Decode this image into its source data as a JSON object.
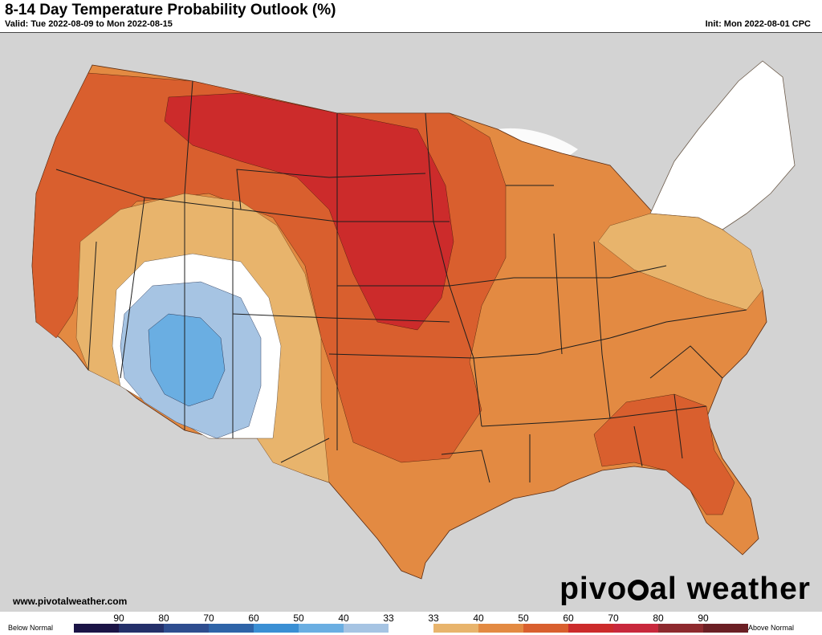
{
  "header": {
    "title": "8-14 Day Temperature Probability Outlook (%)",
    "valid": "Valid: Tue 2022-08-09 to Mon 2022-08-15",
    "init": "Init: Mon 2022-08-01 CPC"
  },
  "footer": {
    "url": "www.pivotalweather.com",
    "brand_left": "pivo",
    "brand_right": "al weather"
  },
  "legend": {
    "below_label": "Below Normal",
    "above_label": "Above Normal",
    "ticks": [
      "90",
      "80",
      "70",
      "60",
      "50",
      "40",
      "33",
      "33",
      "40",
      "50",
      "60",
      "70",
      "80",
      "90"
    ],
    "colors": [
      "#1b1446",
      "#24306a",
      "#2e4d8f",
      "#2e64a8",
      "#3a8fd4",
      "#6aaee2",
      "#a6c4e3",
      "#ffffff",
      "#e8b46c",
      "#e38a42",
      "#d95f2e",
      "#cc2b2b",
      "#c8283c",
      "#8e2a2e",
      "#6b1f24"
    ]
  },
  "map_colors": {
    "land_background": "#d3d3d3",
    "no_signal": "#ffffff",
    "above_33": "#e8b46c",
    "above_40": "#e38a42",
    "above_50": "#d95f2e",
    "above_60": "#cc2b2b",
    "below_33": "#a6c4e3",
    "below_40": "#6aaee2"
  }
}
